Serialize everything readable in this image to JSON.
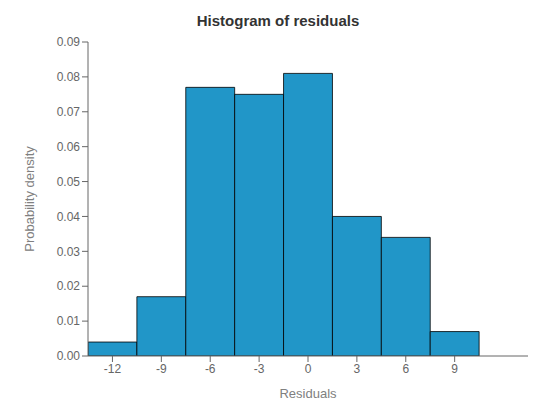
{
  "chart_data": {
    "type": "histogram",
    "title": "Histogram of residuals",
    "xlabel": "Residuals",
    "ylabel": "Probability density",
    "bins": [
      -13.5,
      -10.5,
      -7.5,
      -4.5,
      -1.5,
      1.5,
      4.5,
      7.5,
      10.5,
      13.5
    ],
    "values": [
      0.004,
      0.017,
      0.077,
      0.075,
      0.081,
      0.04,
      0.034,
      0.007,
      0.0
    ],
    "color": "#2196c8",
    "xlim": [
      -13.5,
      13.5
    ],
    "ylim": [
      0,
      0.09
    ],
    "xticks": [
      -12,
      -9,
      -6,
      -3,
      0,
      3,
      6,
      9
    ],
    "yticks": [
      {
        "value": 0,
        "label": "0.00"
      },
      0.01,
      0.02,
      0.03,
      0.04,
      0.05,
      0.06,
      0.07,
      0.08,
      0.09
    ]
  }
}
